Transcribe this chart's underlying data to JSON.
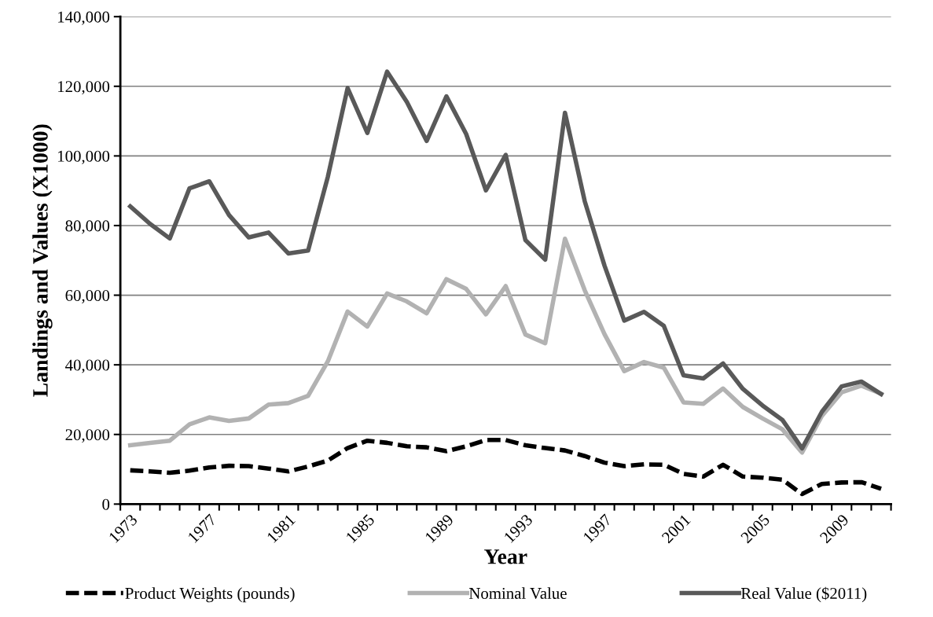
{
  "chart_data": {
    "type": "line",
    "xlabel": "Year",
    "ylabel": "Landings and Values (X1000)",
    "categories": [
      "1973",
      null,
      null,
      null,
      "1977",
      null,
      null,
      null,
      "1981",
      null,
      null,
      null,
      "1985",
      null,
      null,
      null,
      "1989",
      null,
      null,
      null,
      "1993",
      null,
      null,
      null,
      "1997",
      null,
      null,
      null,
      "2001",
      null,
      null,
      null,
      "2005",
      null,
      null,
      null,
      "2009",
      null,
      null
    ],
    "series": [
      {
        "name": "Product Weights (pounds)",
        "color": "#000000",
        "line_style": "dashed",
        "values": [
          9700,
          9400,
          9000,
          9600,
          10500,
          11000,
          10900,
          10200,
          9400,
          10800,
          12500,
          16100,
          18200,
          17600,
          16600,
          16300,
          15200,
          16600,
          18400,
          18400,
          16900,
          16100,
          15400,
          13800,
          11900,
          10900,
          11400,
          11300,
          8700,
          7900,
          11300,
          7900,
          7600,
          7000,
          2900,
          5800,
          6200,
          6300,
          4400
        ]
      },
      {
        "name": "Nominal Value",
        "color": "#b2b2b2",
        "line_style": "solid",
        "values": [
          16900,
          17600,
          18200,
          22900,
          24900,
          23900,
          24600,
          28600,
          29000,
          31100,
          41000,
          55300,
          51000,
          60500,
          58200,
          54800,
          64600,
          61800,
          54500,
          62600,
          48700,
          46200,
          76200,
          61400,
          48800,
          38200,
          40800,
          39200,
          29200,
          28800,
          33200,
          27900,
          24600,
          21500,
          14800,
          25300,
          32100,
          34000,
          31700
        ]
      },
      {
        "name": "Real Value ($2011)",
        "color": "#595959",
        "line_style": "solid",
        "values": [
          85500,
          80500,
          76300,
          90700,
          92700,
          83000,
          76600,
          78000,
          72000,
          72800,
          94000,
          119500,
          106600,
          124200,
          115500,
          104300,
          117100,
          106300,
          90100,
          100300,
          75800,
          70200,
          112400,
          87000,
          68500,
          52700,
          55200,
          51200,
          37000,
          36100,
          40400,
          33100,
          28300,
          24200,
          16000,
          26500,
          33800,
          35200,
          31600
        ]
      }
    ],
    "ylim": [
      0,
      140000
    ],
    "yticks": [
      0,
      {
        "value": 20000,
        "label": "20,000"
      },
      {
        "value": 40000,
        "label": "40,000"
      },
      {
        "value": 60000,
        "label": "60,000"
      },
      {
        "value": 80000,
        "label": "80,000"
      },
      {
        "value": 100000,
        "label": "100,000"
      },
      {
        "value": 120000,
        "label": "120,000"
      },
      {
        "value": 140000,
        "label": "140,000"
      }
    ],
    "grid": "y",
    "legend": "bottom",
    "marker": "none"
  }
}
